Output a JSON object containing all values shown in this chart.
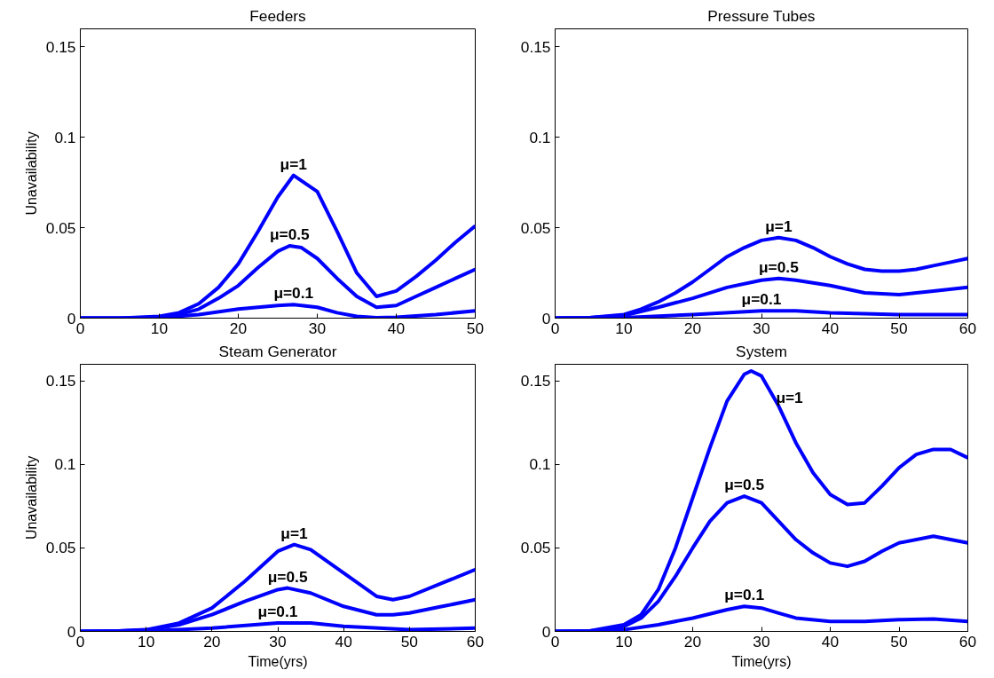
{
  "chart_data": [
    {
      "type": "line",
      "title": "Feeders",
      "ylabel": "Unavailability",
      "xlim": [
        0,
        50
      ],
      "ylim": [
        0,
        0.16
      ],
      "xticks": [
        0,
        10,
        20,
        30,
        40,
        50
      ],
      "yticks": [
        0,
        0.05,
        0.1,
        0.15
      ],
      "grid": false,
      "legend": false,
      "line_style": "solid",
      "marker": "none",
      "series": [
        {
          "name": "μ=1",
          "color": "#0000ff",
          "x": [
            0,
            5,
            10,
            12.5,
            15,
            17.5,
            20,
            22.5,
            25,
            27,
            30,
            32.5,
            35,
            37.5,
            40,
            42.5,
            45,
            47.5,
            50
          ],
          "values": [
            0,
            0,
            0.001,
            0.003,
            0.008,
            0.017,
            0.03,
            0.048,
            0.067,
            0.079,
            0.07,
            0.048,
            0.025,
            0.012,
            0.015,
            0.023,
            0.032,
            0.042,
            0.051
          ]
        },
        {
          "name": "μ=0.5",
          "color": "#0000ff",
          "x": [
            0,
            5,
            10,
            12.5,
            15,
            17.5,
            20,
            22.5,
            25,
            26.5,
            28,
            30,
            32.5,
            35,
            37.5,
            40,
            42.5,
            45,
            47.5,
            50
          ],
          "values": [
            0,
            0,
            0.0005,
            0.002,
            0.005,
            0.011,
            0.018,
            0.028,
            0.037,
            0.04,
            0.039,
            0.033,
            0.022,
            0.012,
            0.006,
            0.007,
            0.012,
            0.017,
            0.022,
            0.027
          ]
        },
        {
          "name": "μ=0.1",
          "color": "#0000ff",
          "x": [
            0,
            5,
            10,
            15,
            20,
            25,
            27,
            30,
            32.5,
            35,
            37.5,
            40,
            45,
            50
          ],
          "values": [
            0,
            0,
            0.0002,
            0.002,
            0.005,
            0.007,
            0.0075,
            0.006,
            0.003,
            0.001,
            0.0003,
            0.0005,
            0.002,
            0.004
          ]
        }
      ]
    },
    {
      "type": "line",
      "title": "Pressure Tubes",
      "xlim": [
        0,
        60
      ],
      "ylim": [
        0,
        0.16
      ],
      "xticks": [
        0,
        10,
        20,
        30,
        40,
        50,
        60
      ],
      "yticks": [
        0,
        0.05,
        0.1,
        0.15
      ],
      "grid": false,
      "legend": false,
      "line_style": "solid",
      "marker": "none",
      "series": [
        {
          "name": "μ=1",
          "color": "#0000ff",
          "x": [
            0,
            5,
            10,
            12.5,
            15,
            17.5,
            20,
            22.5,
            25,
            27.5,
            30,
            32.5,
            35,
            37.5,
            40,
            42.5,
            45,
            47.5,
            50,
            52.5,
            55,
            57.5,
            60
          ],
          "values": [
            0,
            0.0003,
            0.002,
            0.005,
            0.009,
            0.014,
            0.02,
            0.027,
            0.034,
            0.039,
            0.043,
            0.0445,
            0.043,
            0.039,
            0.034,
            0.03,
            0.027,
            0.026,
            0.026,
            0.027,
            0.029,
            0.031,
            0.033
          ]
        },
        {
          "name": "μ=0.5",
          "color": "#0000ff",
          "x": [
            0,
            5,
            10,
            15,
            20,
            25,
            30,
            32.5,
            35,
            40,
            45,
            50,
            55,
            60
          ],
          "values": [
            0,
            0.0002,
            0.0015,
            0.006,
            0.011,
            0.017,
            0.021,
            0.022,
            0.021,
            0.018,
            0.014,
            0.013,
            0.015,
            0.017
          ]
        },
        {
          "name": "μ=0.1",
          "color": "#0000ff",
          "x": [
            0,
            10,
            20,
            30,
            35,
            40,
            50,
            60
          ],
          "values": [
            0,
            0.0003,
            0.002,
            0.004,
            0.004,
            0.003,
            0.002,
            0.002
          ]
        }
      ]
    },
    {
      "type": "line",
      "title": "Steam Generator",
      "xlabel": "Time(yrs)",
      "ylabel": "Unavailability",
      "xlim": [
        0,
        60
      ],
      "ylim": [
        0,
        0.16
      ],
      "xticks": [
        0,
        10,
        20,
        30,
        40,
        50,
        60
      ],
      "yticks": [
        0,
        0.05,
        0.1,
        0.15
      ],
      "grid": false,
      "legend": false,
      "line_style": "solid",
      "marker": "none",
      "series": [
        {
          "name": "μ=1",
          "color": "#0000ff",
          "x": [
            0,
            5,
            10,
            15,
            20,
            25,
            30,
            32.5,
            35,
            40,
            45,
            47.5,
            50,
            55,
            60
          ],
          "values": [
            0,
            0.0002,
            0.001,
            0.005,
            0.014,
            0.03,
            0.048,
            0.052,
            0.049,
            0.035,
            0.021,
            0.019,
            0.021,
            0.029,
            0.037
          ]
        },
        {
          "name": "μ=0.5",
          "color": "#0000ff",
          "x": [
            0,
            5,
            10,
            15,
            20,
            25,
            30,
            31.5,
            35,
            40,
            45,
            47.5,
            50,
            55,
            60
          ],
          "values": [
            0,
            0.0001,
            0.0008,
            0.004,
            0.01,
            0.018,
            0.025,
            0.026,
            0.023,
            0.015,
            0.01,
            0.01,
            0.011,
            0.015,
            0.019
          ]
        },
        {
          "name": "μ=0.1",
          "color": "#0000ff",
          "x": [
            0,
            10,
            20,
            30,
            35,
            40,
            50,
            60
          ],
          "values": [
            0,
            0.0002,
            0.002,
            0.005,
            0.005,
            0.003,
            0.001,
            0.002
          ]
        }
      ]
    },
    {
      "type": "line",
      "title": "System",
      "xlabel": "Time(yrs)",
      "xlim": [
        0,
        60
      ],
      "ylim": [
        0,
        0.16
      ],
      "xticks": [
        0,
        10,
        20,
        30,
        40,
        50,
        60
      ],
      "yticks": [
        0,
        0.05,
        0.1,
        0.15
      ],
      "grid": false,
      "legend": false,
      "line_style": "solid",
      "marker": "none",
      "series": [
        {
          "name": "μ=1",
          "color": "#0000ff",
          "x": [
            0,
            5,
            10,
            12.5,
            15,
            17.5,
            20,
            22.5,
            25,
            27.5,
            28.5,
            30,
            32.5,
            35,
            37.5,
            40,
            42.5,
            45,
            47.5,
            50,
            52.5,
            55,
            57.5,
            60
          ],
          "values": [
            0,
            0.0003,
            0.004,
            0.01,
            0.025,
            0.05,
            0.08,
            0.11,
            0.138,
            0.154,
            0.156,
            0.153,
            0.135,
            0.113,
            0.095,
            0.082,
            0.076,
            0.077,
            0.087,
            0.098,
            0.106,
            0.109,
            0.109,
            0.104
          ]
        },
        {
          "name": "μ=0.5",
          "color": "#0000ff",
          "x": [
            0,
            5,
            10,
            12.5,
            15,
            17.5,
            20,
            22.5,
            25,
            27.5,
            30,
            32.5,
            35,
            37.5,
            40,
            42.5,
            45,
            47.5,
            50,
            55,
            60
          ],
          "values": [
            0,
            0.0002,
            0.003,
            0.008,
            0.018,
            0.033,
            0.05,
            0.066,
            0.077,
            0.081,
            0.077,
            0.066,
            0.055,
            0.047,
            0.041,
            0.039,
            0.042,
            0.048,
            0.053,
            0.057,
            0.053
          ]
        },
        {
          "name": "μ=0.1",
          "color": "#0000ff",
          "x": [
            0,
            5,
            10,
            15,
            20,
            25,
            27.5,
            30,
            32.5,
            35,
            40,
            45,
            50,
            55,
            60
          ],
          "values": [
            0,
            0.0001,
            0.001,
            0.004,
            0.008,
            0.013,
            0.015,
            0.014,
            0.011,
            0.008,
            0.006,
            0.006,
            0.007,
            0.0075,
            0.006
          ]
        }
      ]
    }
  ]
}
